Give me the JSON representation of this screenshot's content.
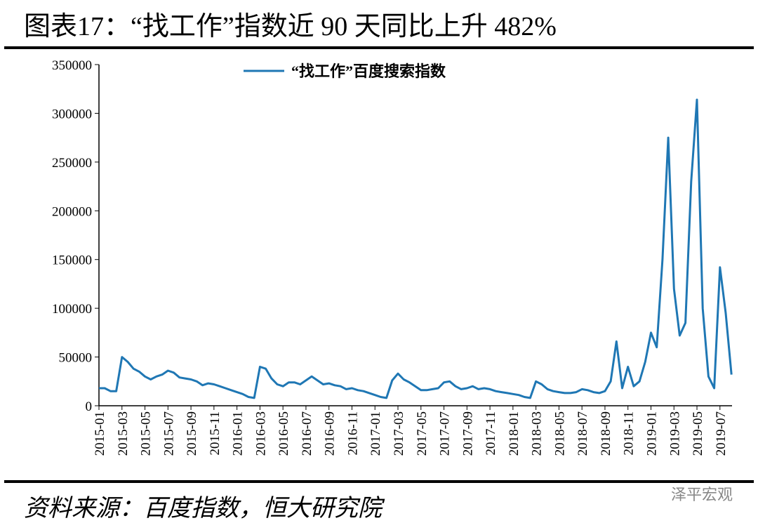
{
  "chart_data": {
    "type": "line",
    "title": "图表17：“找工作”指数近 90 天同比上升 482%",
    "source": "资料来源：百度指数，恒大研究院",
    "watermark": "泽平宏观",
    "categories": [
      "2015-01",
      null,
      null,
      null,
      "2015-03",
      null,
      null,
      null,
      "2015-05",
      null,
      null,
      null,
      "2015-07",
      null,
      null,
      null,
      "2015-09",
      null,
      null,
      null,
      "2015-11",
      null,
      null,
      null,
      "2016-01",
      null,
      null,
      null,
      "2016-03",
      null,
      null,
      null,
      "2016-05",
      null,
      null,
      null,
      "2016-07",
      null,
      null,
      null,
      "2016-09",
      null,
      null,
      null,
      "2016-11",
      null,
      null,
      null,
      "2017-01",
      null,
      null,
      null,
      "2017-03",
      null,
      null,
      null,
      "2017-05",
      null,
      null,
      null,
      "2017-07",
      null,
      null,
      null,
      "2017-09",
      null,
      null,
      null,
      "2017-11",
      null,
      null,
      null,
      "2018-01",
      null,
      null,
      null,
      "2018-03",
      null,
      null,
      null,
      "2018-05",
      null,
      null,
      null,
      "2018-07",
      null,
      null,
      null,
      "2018-09",
      null,
      null,
      null,
      "2018-11",
      null,
      null,
      null,
      "2019-01",
      null,
      null,
      null,
      "2019-03",
      null,
      null,
      null,
      "2019-05",
      null,
      null,
      null,
      "2019-07",
      null,
      null
    ],
    "series": [
      {
        "name": "“找工作”百度搜索指数",
        "color": "#1f77b4",
        "values": [
          18000,
          18000,
          15000,
          15000,
          50000,
          45000,
          38000,
          35000,
          30000,
          27000,
          30000,
          32000,
          36000,
          34000,
          29000,
          28000,
          27000,
          25000,
          21000,
          23000,
          22000,
          20000,
          18000,
          16000,
          14000,
          12000,
          9000,
          8000,
          40000,
          38000,
          28000,
          22000,
          20000,
          24000,
          24000,
          22000,
          26000,
          30000,
          26000,
          22000,
          23000,
          21000,
          20000,
          17000,
          18000,
          16000,
          15000,
          13000,
          11000,
          9000,
          8000,
          26000,
          33000,
          27000,
          24000,
          20000,
          16000,
          16000,
          17000,
          18000,
          24000,
          25000,
          20000,
          17000,
          18000,
          20000,
          17000,
          18000,
          17000,
          15000,
          14000,
          13000,
          12000,
          11000,
          9000,
          8000,
          25000,
          22000,
          17000,
          15000,
          14000,
          13000,
          13000,
          14000,
          17000,
          16000,
          14000,
          13000,
          15000,
          25000,
          66000,
          18000,
          40000,
          20000,
          25000,
          45000,
          75000,
          60000,
          150000,
          275000,
          120000,
          72000,
          85000,
          230000,
          314000,
          100000,
          30000,
          18000,
          142000,
          95000,
          32000
        ]
      }
    ],
    "ylim": [
      0,
      350000
    ],
    "yticks": [
      0,
      50000,
      100000,
      150000,
      200000,
      250000,
      300000,
      350000
    ],
    "legend": "top"
  }
}
